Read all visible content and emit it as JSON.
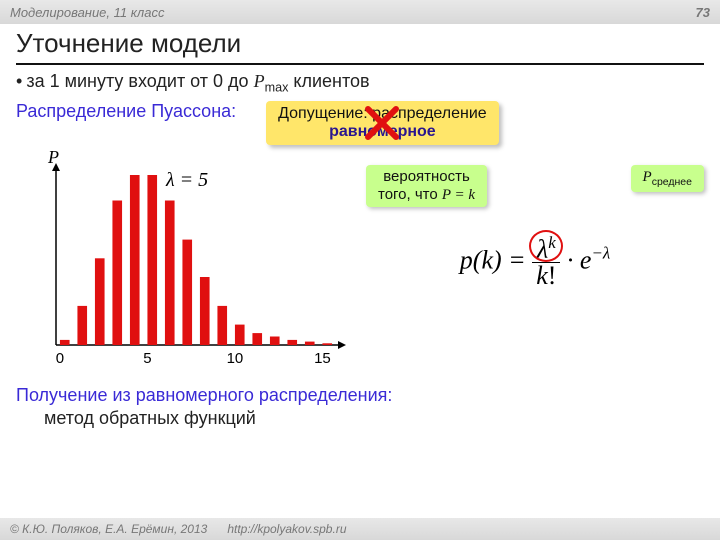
{
  "header": {
    "left": "Моделирование, 11 класс",
    "page_number": "73"
  },
  "title": "Уточнение модели",
  "bullet": {
    "prefix": "за 1 минуту входит от 0 до ",
    "pmax_var": "P",
    "pmax_sub": "max",
    "suffix": " клиентов"
  },
  "poisson_label": "Распределение Пуассона:",
  "assumption": {
    "line1": "Допущение: распределение",
    "line2_strong": "равномерное",
    "cross_color": "#e01010"
  },
  "meaning": {
    "line1": "вероятность",
    "line2_prefix": "того, что ",
    "line2_formula": "P = k"
  },
  "avg_label": {
    "var": "P",
    "sub": "среднее"
  },
  "formula": {
    "lhs": "p(k)",
    "num_base": "λ",
    "num_exp": "k",
    "den_base": "k",
    "den_fact": "!",
    "exp_base": "e",
    "exp_pow": "−λ",
    "circle_color": "#e01010"
  },
  "bottom": {
    "main": "Получение из равномерного распределения:",
    "sub": "метод обратных функций"
  },
  "footer": {
    "authors": "© К.Ю. Поляков, Е.А. Ерёмин, 2013",
    "url": "http://kpolyakov.spb.ru"
  },
  "chart": {
    "type": "bar",
    "y_label": "P",
    "lambda_value": "λ = 5",
    "x_ticks": [
      0,
      5,
      10,
      15
    ],
    "x_max": 16,
    "values": [
      0.03,
      0.23,
      0.51,
      0.85,
      1.0,
      1.0,
      0.85,
      0.62,
      0.4,
      0.23,
      0.12,
      0.07,
      0.05,
      0.03,
      0.02,
      0.01
    ],
    "bar_color": "#e01010",
    "axis_color": "#000000",
    "bar_width_ratio": 0.55
  }
}
